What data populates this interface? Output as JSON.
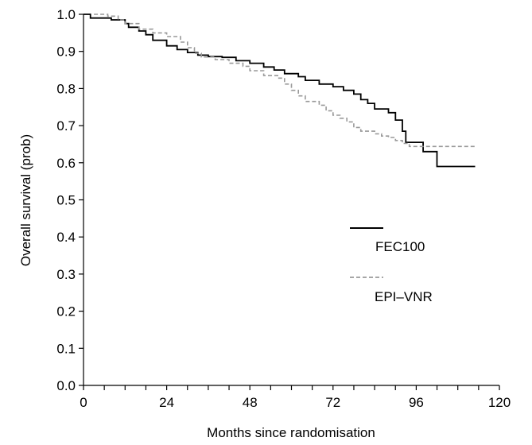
{
  "chart_data": {
    "type": "line",
    "title": "",
    "xlabel": "Months since randomisation",
    "ylabel": "Overall survival (prob)",
    "xlim": [
      0,
      120
    ],
    "ylim": [
      0.0,
      1.0
    ],
    "x_ticks": [
      0,
      24,
      48,
      72,
      96,
      120
    ],
    "x_minor_step": 6,
    "y_ticks": [
      0.0,
      0.1,
      0.2,
      0.3,
      0.4,
      0.5,
      0.6,
      0.7,
      0.8,
      0.9,
      1.0
    ],
    "grid": false,
    "legend_position": "right-middle",
    "series": [
      {
        "name": "FEC100",
        "color": "#000000",
        "dash": "solid",
        "step": true,
        "points": [
          [
            0,
            1.0
          ],
          [
            2,
            0.99
          ],
          [
            8,
            0.985
          ],
          [
            12,
            0.975
          ],
          [
            13,
            0.965
          ],
          [
            16,
            0.955
          ],
          [
            18,
            0.945
          ],
          [
            20,
            0.93
          ],
          [
            24,
            0.915
          ],
          [
            27,
            0.905
          ],
          [
            30,
            0.897
          ],
          [
            33,
            0.89
          ],
          [
            36,
            0.886
          ],
          [
            40,
            0.884
          ],
          [
            44,
            0.875
          ],
          [
            48,
            0.868
          ],
          [
            52,
            0.858
          ],
          [
            55,
            0.85
          ],
          [
            58,
            0.84
          ],
          [
            62,
            0.832
          ],
          [
            64,
            0.822
          ],
          [
            68,
            0.812
          ],
          [
            72,
            0.805
          ],
          [
            75,
            0.795
          ],
          [
            78,
            0.785
          ],
          [
            80,
            0.77
          ],
          [
            82,
            0.76
          ],
          [
            84,
            0.745
          ],
          [
            88,
            0.735
          ],
          [
            90,
            0.715
          ],
          [
            92,
            0.685
          ],
          [
            93,
            0.655
          ],
          [
            98,
            0.63
          ],
          [
            102,
            0.59
          ],
          [
            113,
            0.59
          ]
        ]
      },
      {
        "name": "EPI–VNR",
        "color": "#999999",
        "dash": "dashed",
        "step": true,
        "points": [
          [
            3,
            1.0
          ],
          [
            7,
            0.995
          ],
          [
            10,
            0.985
          ],
          [
            12,
            0.975
          ],
          [
            16,
            0.96
          ],
          [
            20,
            0.95
          ],
          [
            24,
            0.94
          ],
          [
            28,
            0.925
          ],
          [
            30,
            0.91
          ],
          [
            32,
            0.895
          ],
          [
            34,
            0.885
          ],
          [
            38,
            0.878
          ],
          [
            42,
            0.868
          ],
          [
            46,
            0.86
          ],
          [
            48,
            0.848
          ],
          [
            52,
            0.835
          ],
          [
            56,
            0.828
          ],
          [
            58,
            0.812
          ],
          [
            60,
            0.795
          ],
          [
            62,
            0.78
          ],
          [
            64,
            0.765
          ],
          [
            68,
            0.755
          ],
          [
            70,
            0.74
          ],
          [
            72,
            0.728
          ],
          [
            74,
            0.72
          ],
          [
            76,
            0.71
          ],
          [
            78,
            0.695
          ],
          [
            80,
            0.685
          ],
          [
            84,
            0.678
          ],
          [
            86,
            0.672
          ],
          [
            88,
            0.668
          ],
          [
            90,
            0.66
          ],
          [
            92,
            0.652
          ],
          [
            94,
            0.644
          ],
          [
            113,
            0.644
          ]
        ]
      }
    ]
  }
}
